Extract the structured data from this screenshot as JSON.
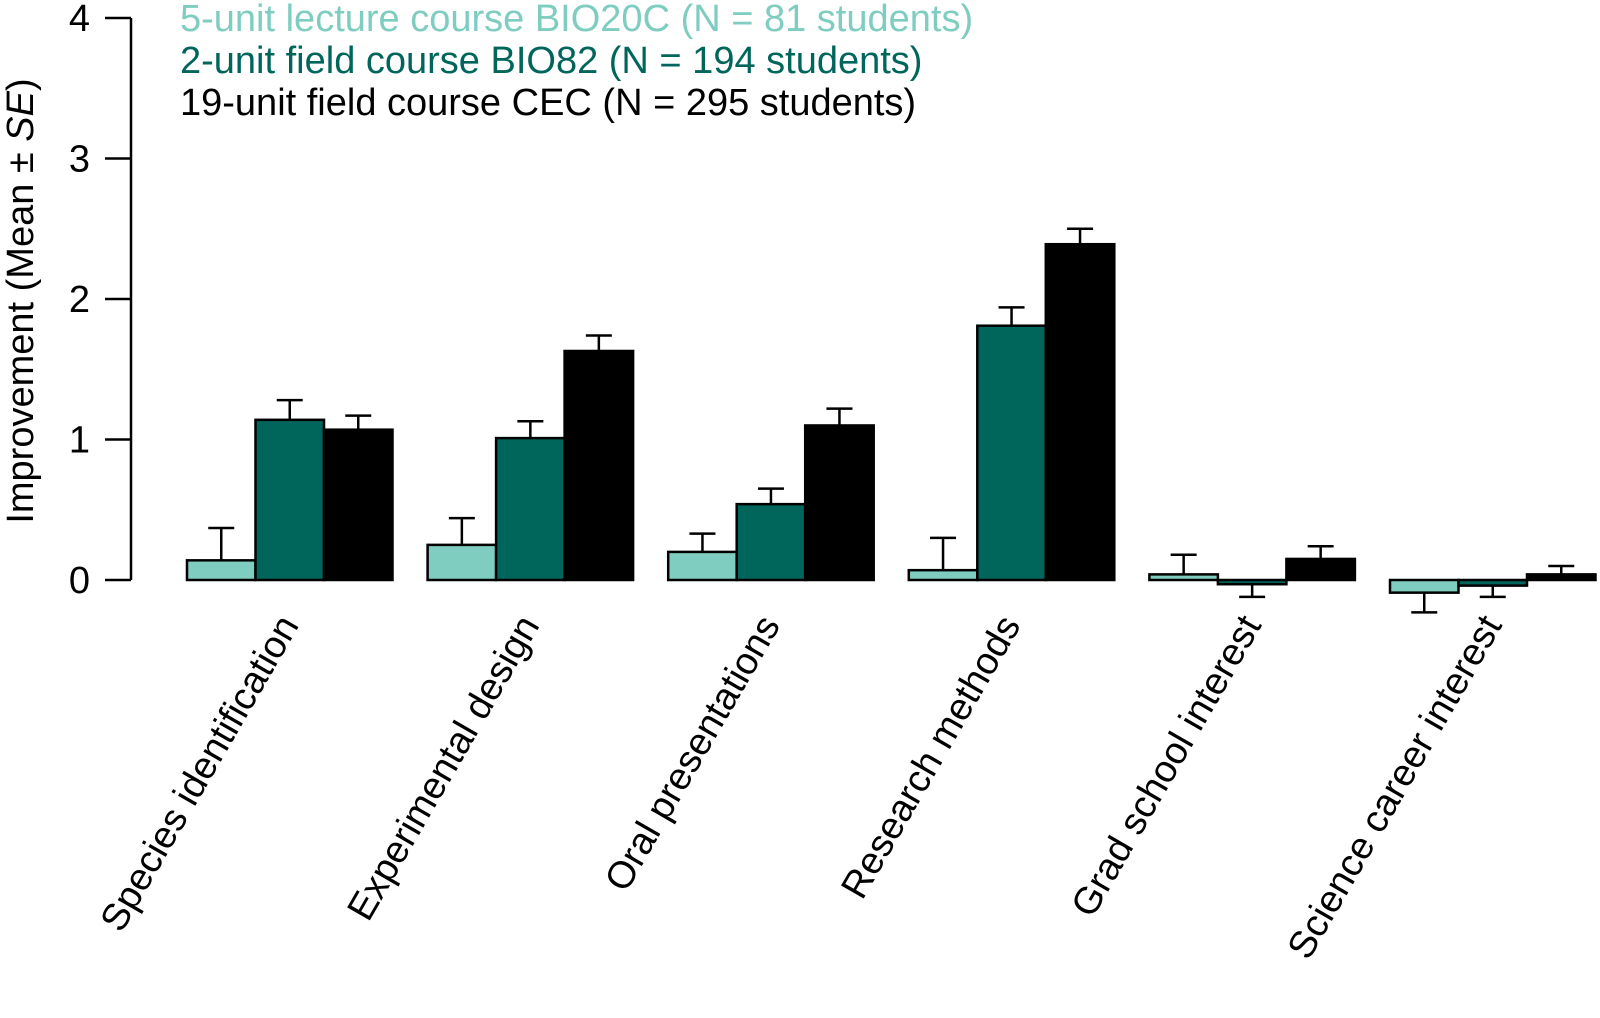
{
  "chart_data": {
    "type": "bar",
    "categories": [
      "Species identification",
      "Experimental design",
      "Oral presentations",
      "Research methods",
      "Grad school interest",
      "Science career interest"
    ],
    "series": [
      {
        "name": "5-unit lecture course BIO20C (N = 81 students)",
        "color": "#7fcdc0",
        "values": [
          0.14,
          0.25,
          0.2,
          0.07,
          0.04,
          -0.09
        ],
        "se": [
          0.23,
          0.19,
          0.13,
          0.23,
          0.14,
          0.14
        ]
      },
      {
        "name": "2-unit field course BIO82 (N = 194 students)",
        "color": "#00665c",
        "values": [
          1.14,
          1.01,
          0.54,
          1.81,
          -0.03,
          -0.04
        ],
        "se": [
          0.14,
          0.12,
          0.11,
          0.13,
          0.09,
          0.08
        ]
      },
      {
        "name": "19-unit field course CEC (N = 295 students)",
        "color": "#000000",
        "values": [
          1.07,
          1.63,
          1.1,
          2.39,
          0.15,
          0.04
        ],
        "se": [
          0.1,
          0.11,
          0.12,
          0.11,
          0.09,
          0.06
        ]
      }
    ],
    "ylabel": {
      "prefix": "Improvement (Mean ± ",
      "italic": "SE",
      "suffix": ")"
    },
    "ylim": [
      0,
      4
    ],
    "yticks": [
      0,
      1,
      2,
      3,
      4
    ],
    "legend_position": "top-left",
    "grid": false
  }
}
